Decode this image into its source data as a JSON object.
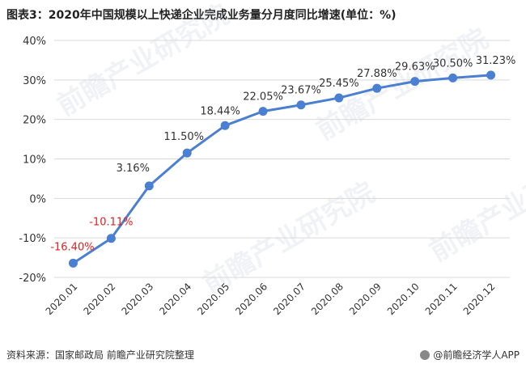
{
  "chart_data": {
    "type": "line",
    "title": "图表3：2020年中国规模以上快递企业完成业务量分月度同比增速(单位：%)",
    "categories": [
      "2020.01",
      "2020.02",
      "2020.03",
      "2020.04",
      "2020.05",
      "2020.06",
      "2020.07",
      "2020.08",
      "2020.09",
      "2020.10",
      "2020.11",
      "2020.12"
    ],
    "series": [
      {
        "values": [
          -16.4,
          -10.11,
          3.16,
          11.5,
          18.44,
          22.05,
          23.67,
          25.45,
          27.88,
          29.63,
          30.5,
          31.23
        ],
        "data_labels": [
          "-16.40%",
          "-10.11%",
          "3.16%",
          "11.50%",
          "18.44%",
          "22.05%",
          "23.67%",
          "25.45%",
          "27.88%",
          "29.63%",
          "30.50%",
          "31.23%"
        ]
      }
    ],
    "ylim": [
      -20,
      40
    ],
    "yticks": [
      -20,
      -10,
      0,
      10,
      20,
      30,
      40
    ],
    "ytick_labels": [
      "-20%",
      "-10%",
      "0%",
      "10%",
      "20%",
      "30%",
      "40%"
    ],
    "grid": true,
    "colors": {
      "line": "#4a7fd1",
      "negative_label": "#e02020",
      "positive_label": "#333333",
      "grid": "#d9d9d9"
    }
  },
  "source": "资料来源：国家邮政局 前瞻产业研究院整理",
  "brand": "@前瞻经济学人APP",
  "watermarks": [
    "前瞻产业研究院",
    "前瞻产业研究院",
    "前瞻产业研究院",
    "前瞻产业研究院"
  ]
}
